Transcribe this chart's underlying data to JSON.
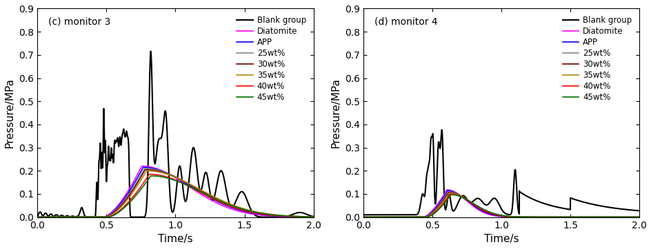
{
  "panel_c": {
    "title": "(c) monitor 3",
    "xlabel": "Time/s",
    "ylabel": "Pressure/MPa",
    "xlim": [
      0.0,
      2.0
    ],
    "ylim": [
      0.0,
      0.9
    ],
    "yticks": [
      0.0,
      0.1,
      0.2,
      0.3,
      0.4,
      0.5,
      0.6,
      0.7,
      0.8,
      0.9
    ],
    "xticks": [
      0.0,
      0.5,
      1.0,
      1.5,
      2.0
    ]
  },
  "panel_d": {
    "title": "(d) monitor 4",
    "xlabel": "Time/s",
    "ylabel": "Pressure/MPa",
    "xlim": [
      0.0,
      2.0
    ],
    "ylim": [
      0.0,
      0.9
    ],
    "yticks": [
      0.0,
      0.1,
      0.2,
      0.3,
      0.4,
      0.5,
      0.6,
      0.7,
      0.8,
      0.9
    ],
    "xticks": [
      0.0,
      0.5,
      1.0,
      1.5,
      2.0
    ]
  },
  "legend_labels": [
    "Blank group",
    "Diatomite",
    "APP",
    "25wt%",
    "30wt%",
    "35wt%",
    "40wt%",
    "45wt%"
  ],
  "legend_colors": [
    "#000000",
    "#ff00ff",
    "#0000ff",
    "#888888",
    "#6b0000",
    "#b8860b",
    "#ff0000",
    "#007000"
  ],
  "background_color": "#ffffff"
}
